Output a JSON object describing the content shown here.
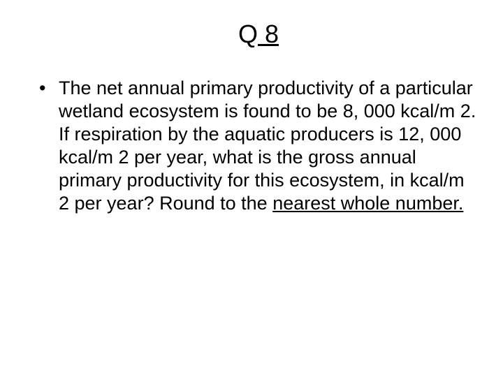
{
  "title_prefix": "Q",
  "title_number": " 8",
  "bullet_part1": "The net annual primary productivity of a particular wetland ecosystem is found to be 8, 000 kcal/m 2. If respiration by the aquatic producers is 12, 000 kcal/m 2 per year, what is the gross annual primary productivity for this ecosystem, in kcal/m 2 per year? Round to the ",
  "bullet_underlined": "nearest whole number.",
  "styles": {
    "background_color": "#ffffff",
    "text_color": "#000000",
    "title_fontsize": 36,
    "body_fontsize": 27,
    "font_family": "Arial"
  }
}
